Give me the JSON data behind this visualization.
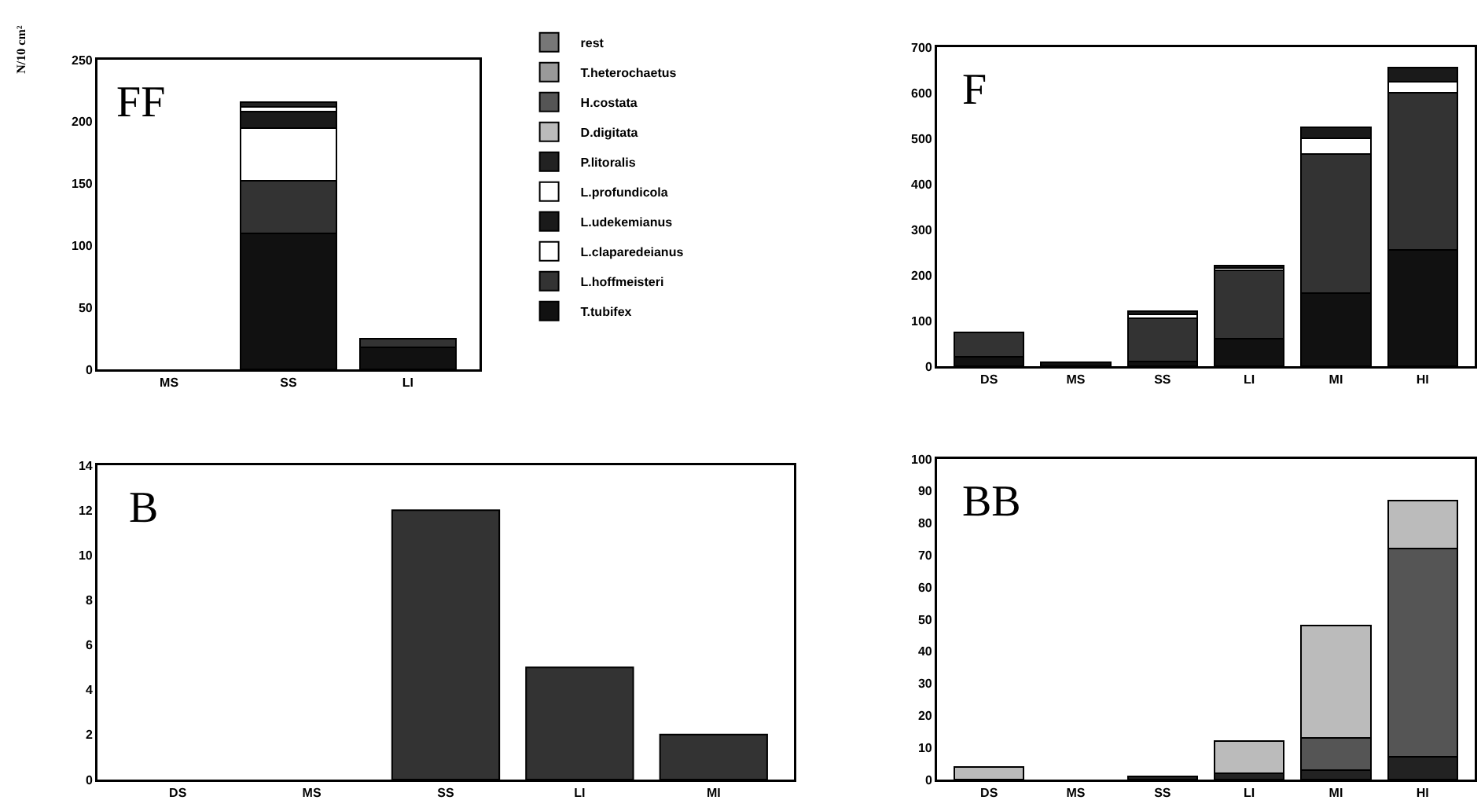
{
  "chart_data": [
    {
      "type": "bar",
      "title": "FF",
      "ylabel": "N/10 cm²",
      "stacked": true,
      "categories": [
        "MS",
        "SS",
        "LI"
      ],
      "ylim": [
        0,
        250
      ],
      "yticks": [
        0,
        50,
        100,
        150,
        200,
        250
      ],
      "grid": false,
      "legend": "right",
      "series": [
        {
          "name": "T.tubifex",
          "color": "#111111",
          "values": [
            null,
            110,
            18
          ]
        },
        {
          "name": "L.hoffmeisteri",
          "color": "#333333",
          "values": [
            null,
            42,
            7
          ]
        },
        {
          "name": "L.claparedeianus",
          "color": "#ffffff",
          "values": [
            null,
            43,
            null
          ]
        },
        {
          "name": "L.udekemianus",
          "color": "#1a1a1a",
          "values": [
            null,
            13,
            null
          ]
        },
        {
          "name": "L.profundicola",
          "color": "#ffffff",
          "values": [
            null,
            4,
            null
          ]
        },
        {
          "name": "P.litoralis",
          "color": "#222222",
          "values": [
            null,
            4,
            null
          ]
        },
        {
          "name": "D.digitata",
          "color": "#bbbbbb",
          "values": [
            null,
            null,
            null
          ]
        },
        {
          "name": "H.costata",
          "color": "#555555",
          "values": [
            null,
            null,
            null
          ]
        },
        {
          "name": "T.heterochaetus",
          "color": "#999999",
          "values": [
            null,
            null,
            null
          ]
        },
        {
          "name": "rest",
          "color": "#777777",
          "values": [
            null,
            null,
            null
          ]
        }
      ]
    },
    {
      "type": "bar",
      "title": "F",
      "stacked": true,
      "categories": [
        "DS",
        "MS",
        "SS",
        "LI",
        "MI",
        "HI"
      ],
      "ylim": [
        0,
        700
      ],
      "yticks": [
        0,
        100,
        200,
        300,
        400,
        500,
        600,
        700
      ],
      "grid": false,
      "series": [
        {
          "color": "#111111",
          "values": [
            20,
            8,
            10,
            60,
            160,
            255
          ]
        },
        {
          "color": "#333333",
          "values": [
            55,
            null,
            95,
            150,
            305,
            345
          ]
        },
        {
          "color": "#ffffff",
          "values": [
            null,
            null,
            8,
            5,
            35,
            25
          ]
        },
        {
          "color": "#1a1a1a",
          "values": [
            null,
            null,
            7,
            5,
            25,
            30
          ]
        }
      ]
    },
    {
      "type": "bar",
      "title": "B",
      "stacked": true,
      "categories": [
        "DS",
        "MS",
        "SS",
        "LI",
        "MI"
      ],
      "ylim": [
        0,
        14
      ],
      "yticks": [
        0,
        2,
        4,
        6,
        8,
        10,
        12,
        14
      ],
      "grid": false,
      "series": [
        {
          "color": "#333333",
          "values": [
            null,
            null,
            12,
            5,
            2
          ]
        }
      ]
    },
    {
      "type": "bar",
      "title": "BB",
      "stacked": true,
      "categories": [
        "DS",
        "MS",
        "SS",
        "LI",
        "MI",
        "HI"
      ],
      "ylim": [
        0,
        100
      ],
      "yticks": [
        0,
        10,
        20,
        30,
        40,
        50,
        60,
        70,
        80,
        90,
        100
      ],
      "grid": false,
      "series": [
        {
          "color": "#222222",
          "values": [
            null,
            null,
            1,
            2,
            3,
            7
          ]
        },
        {
          "color": "#555555",
          "values": [
            null,
            null,
            null,
            null,
            10,
            65
          ]
        },
        {
          "color": "#bbbbbb",
          "values": [
            4,
            null,
            null,
            10,
            35,
            15
          ]
        }
      ]
    }
  ]
}
